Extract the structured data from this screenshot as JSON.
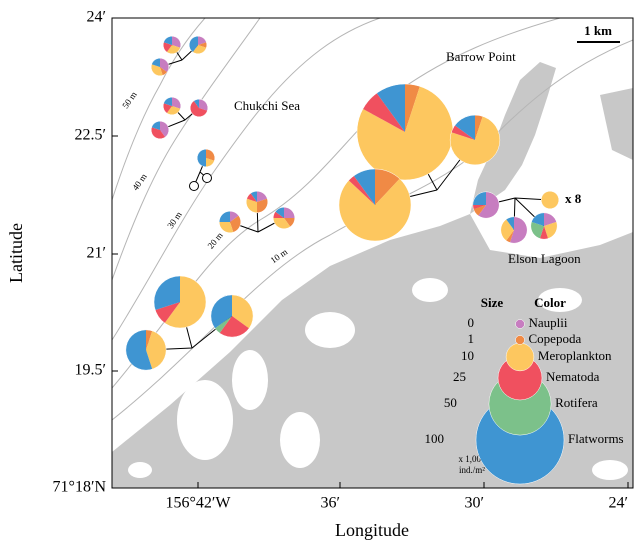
{
  "axes": {
    "xlabel": "Longitude",
    "ylabel": "Latitude",
    "xticks": [
      "156°42′W",
      "36′",
      "30′",
      "24′"
    ],
    "yticks": [
      "24′",
      "22.5′",
      "21′",
      "19.5′",
      "71°18′N"
    ]
  },
  "scale_bar": "1 km",
  "places": [
    "Barrow Point",
    "Chukchi Sea",
    "Elson Lagoon"
  ],
  "contours": [
    "50 m",
    "40 m",
    "30 m",
    "20 m",
    "10 m"
  ],
  "multiplier_note": "x 8",
  "legend": {
    "size_title": "Size",
    "color_title": "Color",
    "sizes": [
      0,
      1,
      10,
      25,
      50,
      100
    ],
    "groups": [
      {
        "name": "Nauplii",
        "color": "#c77dc0"
      },
      {
        "name": "Copepoda",
        "color": "#f08a45"
      },
      {
        "name": "Meroplankton",
        "color": "#fdc75f"
      },
      {
        "name": "Nematoda",
        "color": "#f0505f"
      },
      {
        "name": "Rotifera",
        "color": "#7cc18a"
      },
      {
        "name": "Flatworms",
        "color": "#3f95d2"
      }
    ],
    "unit": [
      "x 1,000",
      "ind./m²"
    ]
  },
  "stations": [
    {
      "abundance": 4,
      "composition": [
        30,
        0,
        30,
        20,
        0,
        20
      ]
    },
    {
      "abundance": 4,
      "composition": [
        20,
        10,
        30,
        0,
        0,
        40
      ]
    },
    {
      "abundance": 4,
      "composition": [
        35,
        10,
        35,
        0,
        0,
        20
      ]
    },
    {
      "abundance": 4,
      "composition": [
        30,
        0,
        30,
        20,
        0,
        20
      ]
    },
    {
      "abundance": 4,
      "composition": [
        30,
        0,
        0,
        60,
        0,
        10
      ]
    },
    {
      "abundance": 4,
      "composition": [
        40,
        0,
        0,
        40,
        0,
        20
      ]
    },
    {
      "abundance": 4,
      "composition": [
        0,
        30,
        20,
        0,
        0,
        50
      ]
    },
    {
      "abundance": 0
    },
    {
      "abundance": 0
    },
    {
      "abundance": 6,
      "composition": [
        20,
        30,
        30,
        10,
        0,
        10
      ]
    },
    {
      "abundance": 6,
      "composition": [
        15,
        30,
        30,
        0,
        0,
        25
      ]
    },
    {
      "abundance": 6,
      "composition": [
        25,
        15,
        35,
        10,
        0,
        15
      ]
    },
    {
      "abundance": 119,
      "composition": [
        0,
        5,
        78,
        7,
        0,
        10
      ]
    },
    {
      "abundance": 32,
      "composition": [
        0,
        5,
        75,
        5,
        0,
        15
      ]
    },
    {
      "abundance": 67,
      "composition": [
        0,
        12,
        75,
        3,
        0,
        10
      ]
    },
    {
      "abundance": 9,
      "composition": [
        60,
        10,
        0,
        5,
        0,
        25
      ]
    },
    {
      "abundance": 9,
      "composition": [
        55,
        5,
        30,
        0,
        0,
        10
      ]
    },
    {
      "abundance": 9,
      "composition": [
        20,
        0,
        25,
        10,
        25,
        20
      ]
    },
    {
      "abundance": 4,
      "composition": [
        0,
        0,
        100,
        0,
        0,
        0
      ]
    },
    {
      "abundance": 35,
      "composition": [
        0,
        0,
        60,
        10,
        0,
        30
      ]
    },
    {
      "abundance": 23,
      "composition": [
        0,
        0,
        35,
        25,
        5,
        35
      ]
    },
    {
      "abundance": 21,
      "composition": [
        0,
        5,
        40,
        0,
        0,
        55
      ]
    }
  ]
}
